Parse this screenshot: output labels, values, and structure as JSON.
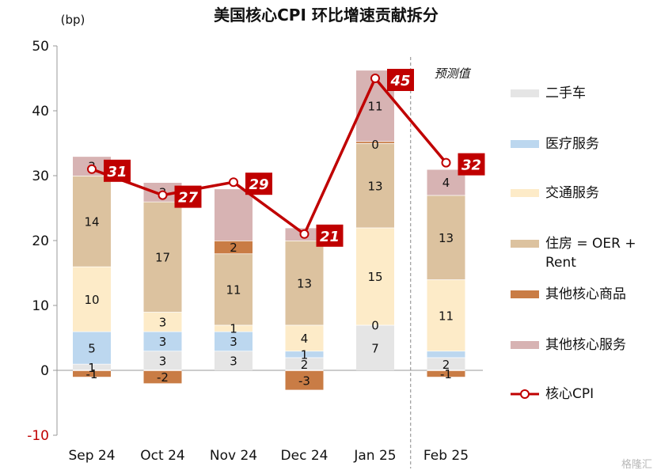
{
  "chart_data": {
    "type": "bar",
    "stacked": true,
    "title": "美国核心CPI 环比增速贡献拆分",
    "ylabel": "(bp)",
    "ylim": [
      -10,
      50
    ],
    "yticks": [
      -10,
      0,
      10,
      20,
      30,
      40,
      50
    ],
    "categories": [
      "Sep 24",
      "Oct 24",
      "Nov 24",
      "Dec 24",
      "Jan 25",
      "Feb 25"
    ],
    "annotation": "预测值",
    "series": [
      {
        "name": "二手车",
        "color": "#e5e5e5",
        "values": [
          1,
          3,
          3,
          2,
          7,
          2
        ],
        "labels": [
          "1",
          "3",
          "3",
          "2",
          "7",
          "2"
        ]
      },
      {
        "name": "医疗服务",
        "color": "#bcd7ef",
        "values": [
          5,
          3,
          3,
          1,
          0,
          1
        ],
        "labels": [
          "5",
          "3",
          "3",
          "1",
          "0",
          ""
        ]
      },
      {
        "name": "交通服务",
        "color": "#fdebc8",
        "values": [
          10,
          3,
          1,
          4,
          15,
          11
        ],
        "labels": [
          "10",
          "3",
          "1",
          "4",
          "15",
          "11"
        ]
      },
      {
        "name": "住房 = OER + Rent",
        "color": "#dcc29f",
        "values": [
          14,
          17,
          11,
          13,
          13,
          13
        ],
        "labels": [
          "14",
          "17",
          "11",
          "13",
          "13",
          "13"
        ]
      },
      {
        "name": "其他核心商品",
        "color": "#c97c45",
        "values": [
          -1,
          -2,
          2,
          -3,
          0.3,
          -1
        ],
        "labels": [
          "-1",
          "-2",
          "2",
          "-3",
          "",
          "-1"
        ]
      },
      {
        "name": "其他核心服务",
        "color": "#d7b3b3",
        "values": [
          3,
          3,
          8,
          2,
          11,
          4
        ],
        "labels": [
          "3",
          "3",
          "",
          "",
          "11",
          "4"
        ]
      }
    ],
    "line": {
      "name": "核心CPI",
      "color": "#c00000",
      "values": [
        31,
        27,
        29,
        21,
        45,
        32
      ]
    },
    "extra_labels": [
      {
        "category": "Jan 25",
        "text": "0"
      }
    ]
  },
  "watermark": "格隆汇"
}
